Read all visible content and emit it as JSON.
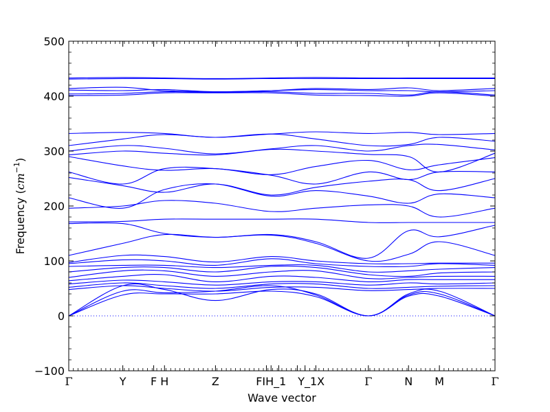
{
  "chart_data": {
    "type": "line",
    "title": "",
    "xlabel": "Wave vector",
    "ylabel": "Frequency ($cm^{-1}$)",
    "ylabel_parts": {
      "prefix": "Frequency (",
      "unit_base": "cm",
      "unit_exp": "−1",
      "suffix": ")"
    },
    "ylim": [
      -100,
      500
    ],
    "yticks": [
      -100,
      0,
      100,
      200,
      300,
      400,
      500
    ],
    "ytick_labels": [
      "−100",
      "0",
      "100",
      "200",
      "300",
      "400",
      "500"
    ],
    "xlim": [
      0,
      13.8
    ],
    "high_symmetry_points": [
      {
        "label": "Γ",
        "x": 0
      },
      {
        "label": "Y",
        "x": 1.75
      },
      {
        "label": "F",
        "x": 2.75
      },
      {
        "label": "H",
        "x": 3.1
      },
      {
        "label": "Z",
        "x": 4.75
      },
      {
        "label": "F",
        "x": 6.4
      },
      {
        "label": "I",
        "x": 6.55
      },
      {
        "label": "H_1",
        "x": 6.8
      },
      {
        "label": "I_1",
        "x": 7.4
      },
      {
        "label": "Y_1",
        "x": 7.65
      },
      {
        "label": "X",
        "x": 8.0
      },
      {
        "label": "Γ",
        "x": 9.7
      },
      {
        "label": "N",
        "x": 11.0
      },
      {
        "label": "M",
        "x": 12.0
      },
      {
        "label": "Γ",
        "x": 13.8
      }
    ],
    "tick_label_text": [
      {
        "label": "Γ",
        "x": 0
      },
      {
        "label": "Y",
        "x": 1.75
      },
      {
        "label": "F",
        "x": 2.75
      },
      {
        "label": "H",
        "x": 3.1
      },
      {
        "label": "Z",
        "x": 4.75
      },
      {
        "label": "FIH_1",
        "x": 6.55
      },
      {
        "label": "Y_1X",
        "x": 7.85
      },
      {
        "label": "Γ",
        "x": 9.7
      },
      {
        "label": "N",
        "x": 11.0
      },
      {
        "label": "M",
        "x": 12.0
      },
      {
        "label": "Γ",
        "x": 13.8
      }
    ],
    "zero_line": 0,
    "line_color": "#0000ff",
    "series": [
      {
        "x": [
          0,
          1.75,
          3.1,
          4.75,
          6.55,
          8.0,
          9.7,
          11.0,
          12.0,
          13.8
        ],
        "y": [
          433,
          434,
          433,
          432,
          433,
          434,
          433,
          433,
          433,
          433
        ]
      },
      {
        "x": [
          0,
          1.75,
          3.1,
          4.75,
          6.55,
          8.0,
          9.7,
          11.0,
          12.0,
          13.8
        ],
        "y": [
          431,
          432,
          432,
          431,
          432,
          432,
          432,
          432,
          432,
          432
        ]
      },
      {
        "x": [
          0,
          1.75,
          3.1,
          4.75,
          6.55,
          8.0,
          9.7,
          11.0,
          12.0,
          13.8
        ],
        "y": [
          414,
          416,
          410,
          408,
          410,
          414,
          412,
          415,
          410,
          414
        ]
      },
      {
        "x": [
          0,
          1.75,
          3.1,
          4.75,
          6.55,
          8.0,
          9.7,
          11.0,
          12.0,
          13.8
        ],
        "y": [
          411,
          410,
          412,
          408,
          410,
          412,
          410,
          410,
          408,
          410
        ]
      },
      {
        "x": [
          0,
          1.75,
          3.1,
          4.75,
          6.55,
          8.0,
          9.7,
          11.0,
          12.0,
          13.8
        ],
        "y": [
          404,
          405,
          408,
          407,
          408,
          405,
          405,
          402,
          408,
          402
        ]
      },
      {
        "x": [
          0,
          1.75,
          3.1,
          4.75,
          6.55,
          8.0,
          9.7,
          11.0,
          12.0,
          13.8
        ],
        "y": [
          401,
          402,
          406,
          406,
          406,
          402,
          401,
          400,
          406,
          400
        ]
      },
      {
        "x": [
          0,
          1.75,
          3.1,
          4.75,
          6.55,
          8.0,
          9.7,
          11.0,
          12.0,
          13.8
        ],
        "y": [
          332,
          334,
          332,
          325,
          331,
          335,
          332,
          334,
          330,
          332
        ]
      },
      {
        "x": [
          0,
          1.75,
          3.1,
          4.75,
          6.55,
          8.0,
          9.7,
          11.0,
          12.0,
          13.8
        ],
        "y": [
          310,
          322,
          330,
          325,
          331,
          322,
          310,
          312,
          325,
          318
        ]
      },
      {
        "x": [
          0,
          1.75,
          3.1,
          4.75,
          6.55,
          8.0,
          9.7,
          11.0,
          12.0,
          13.8
        ],
        "y": [
          300,
          310,
          305,
          295,
          304,
          310,
          300,
          310,
          312,
          302
        ]
      },
      {
        "x": [
          0,
          1.75,
          3.1,
          4.75,
          6.55,
          8.0,
          9.7,
          11.0,
          12.0,
          13.8
        ],
        "y": [
          293,
          300,
          296,
          293,
          303,
          300,
          294,
          290,
          262,
          296
        ]
      },
      {
        "x": [
          0,
          1.75,
          3.1,
          4.75,
          6.55,
          8.0,
          9.7,
          11.0,
          12.0,
          13.8
        ],
        "y": [
          290,
          273,
          265,
          268,
          257,
          272,
          283,
          266,
          275,
          288
        ]
      },
      {
        "x": [
          0,
          1.75,
          3.1,
          4.75,
          6.55,
          8.0,
          9.7,
          11.0,
          12.0,
          13.8
        ],
        "y": [
          262,
          240,
          268,
          268,
          256,
          240,
          262,
          248,
          262,
          262
        ]
      },
      {
        "x": [
          0,
          1.75,
          3.1,
          4.75,
          6.55,
          8.0,
          9.7,
          11.0,
          12.0,
          13.8
        ],
        "y": [
          252,
          237,
          225,
          240,
          220,
          234,
          245,
          248,
          228,
          250
        ]
      },
      {
        "x": [
          0,
          1.75,
          3.1,
          4.75,
          6.55,
          8.0,
          9.7,
          11.0,
          12.0,
          13.8
        ],
        "y": [
          215,
          196,
          230,
          240,
          218,
          228,
          218,
          205,
          222,
          215
        ]
      },
      {
        "x": [
          0,
          1.75,
          3.1,
          4.75,
          6.55,
          8.0,
          9.7,
          11.0,
          12.0,
          13.8
        ],
        "y": [
          196,
          200,
          210,
          205,
          190,
          196,
          202,
          200,
          180,
          196
        ]
      },
      {
        "x": [
          0,
          1.75,
          3.1,
          4.75,
          6.55,
          8.0,
          9.7,
          11.0,
          12.0,
          13.8
        ],
        "y": [
          171,
          172,
          176,
          176,
          176,
          176,
          170,
          170,
          170,
          170
        ]
      },
      {
        "x": [
          0,
          1.75,
          3.1,
          4.75,
          6.55,
          8.0,
          9.7,
          11.0,
          12.0,
          13.8
        ],
        "y": [
          168,
          168,
          150,
          143,
          148,
          135,
          105,
          155,
          144,
          165
        ]
      },
      {
        "x": [
          0,
          1.75,
          3.1,
          4.75,
          6.55,
          8.0,
          9.7,
          11.0,
          12.0,
          13.8
        ],
        "y": [
          110,
          132,
          148,
          143,
          147,
          132,
          100,
          112,
          135,
          110
        ]
      },
      {
        "x": [
          0,
          1.75,
          3.1,
          4.75,
          6.55,
          8.0,
          9.7,
          11.0,
          12.0,
          13.8
        ],
        "y": [
          97,
          110,
          108,
          98,
          108,
          100,
          95,
          95,
          96,
          96
        ]
      },
      {
        "x": [
          0,
          1.75,
          3.1,
          4.75,
          6.55,
          8.0,
          9.7,
          11.0,
          12.0,
          13.8
        ],
        "y": [
          95,
          102,
          100,
          92,
          104,
          95,
          90,
          90,
          95,
          92
        ]
      },
      {
        "x": [
          0,
          1.75,
          3.1,
          4.75,
          6.55,
          8.0,
          9.7,
          11.0,
          12.0,
          13.8
        ],
        "y": [
          90,
          92,
          92,
          88,
          92,
          92,
          80,
          82,
          85,
          88
        ]
      },
      {
        "x": [
          0,
          1.75,
          3.1,
          4.75,
          6.55,
          8.0,
          9.7,
          11.0,
          12.0,
          13.8
        ],
        "y": [
          80,
          88,
          88,
          80,
          90,
          88,
          75,
          72,
          78,
          80
        ]
      },
      {
        "x": [
          0,
          1.75,
          3.1,
          4.75,
          6.55,
          8.0,
          9.7,
          11.0,
          12.0,
          13.8
        ],
        "y": [
          70,
          82,
          82,
          72,
          80,
          82,
          68,
          70,
          72,
          72
        ]
      },
      {
        "x": [
          0,
          1.75,
          3.1,
          4.75,
          6.55,
          8.0,
          9.7,
          11.0,
          12.0,
          13.8
        ],
        "y": [
          64,
          72,
          75,
          62,
          72,
          70,
          62,
          66,
          66,
          66
        ]
      },
      {
        "x": [
          0,
          1.75,
          3.1,
          4.75,
          6.55,
          8.0,
          9.7,
          11.0,
          12.0,
          13.8
        ],
        "y": [
          58,
          65,
          62,
          56,
          62,
          62,
          56,
          60,
          58,
          60
        ]
      },
      {
        "x": [
          0,
          1.75,
          3.1,
          4.75,
          6.55,
          8.0,
          9.7,
          11.0,
          12.0,
          13.8
        ],
        "y": [
          52,
          60,
          55,
          50,
          58,
          58,
          50,
          52,
          54,
          55
        ]
      },
      {
        "x": [
          0,
          1.75,
          3.1,
          4.75,
          6.55,
          8.0,
          9.7,
          11.0,
          12.0,
          13.8
        ],
        "y": [
          48,
          55,
          50,
          45,
          52,
          52,
          46,
          48,
          50,
          50
        ]
      },
      {
        "x": [
          0,
          1.75,
          3.1,
          4.75,
          6.55,
          8.0,
          9.7,
          11.0,
          12.0,
          13.8
        ],
        "y": [
          0,
          55,
          48,
          28,
          48,
          40,
          0,
          40,
          45,
          0
        ]
      },
      {
        "x": [
          0,
          1.75,
          3.1,
          4.75,
          6.55,
          8.0,
          9.7,
          11.0,
          12.0,
          13.8
        ],
        "y": [
          0,
          45,
          42,
          45,
          55,
          38,
          0,
          38,
          40,
          0
        ]
      },
      {
        "x": [
          0,
          1.75,
          3.1,
          4.75,
          6.55,
          8.0,
          9.7,
          11.0,
          12.0,
          13.8
        ],
        "y": [
          0,
          38,
          40,
          40,
          45,
          35,
          0,
          36,
          36,
          0
        ]
      }
    ]
  }
}
